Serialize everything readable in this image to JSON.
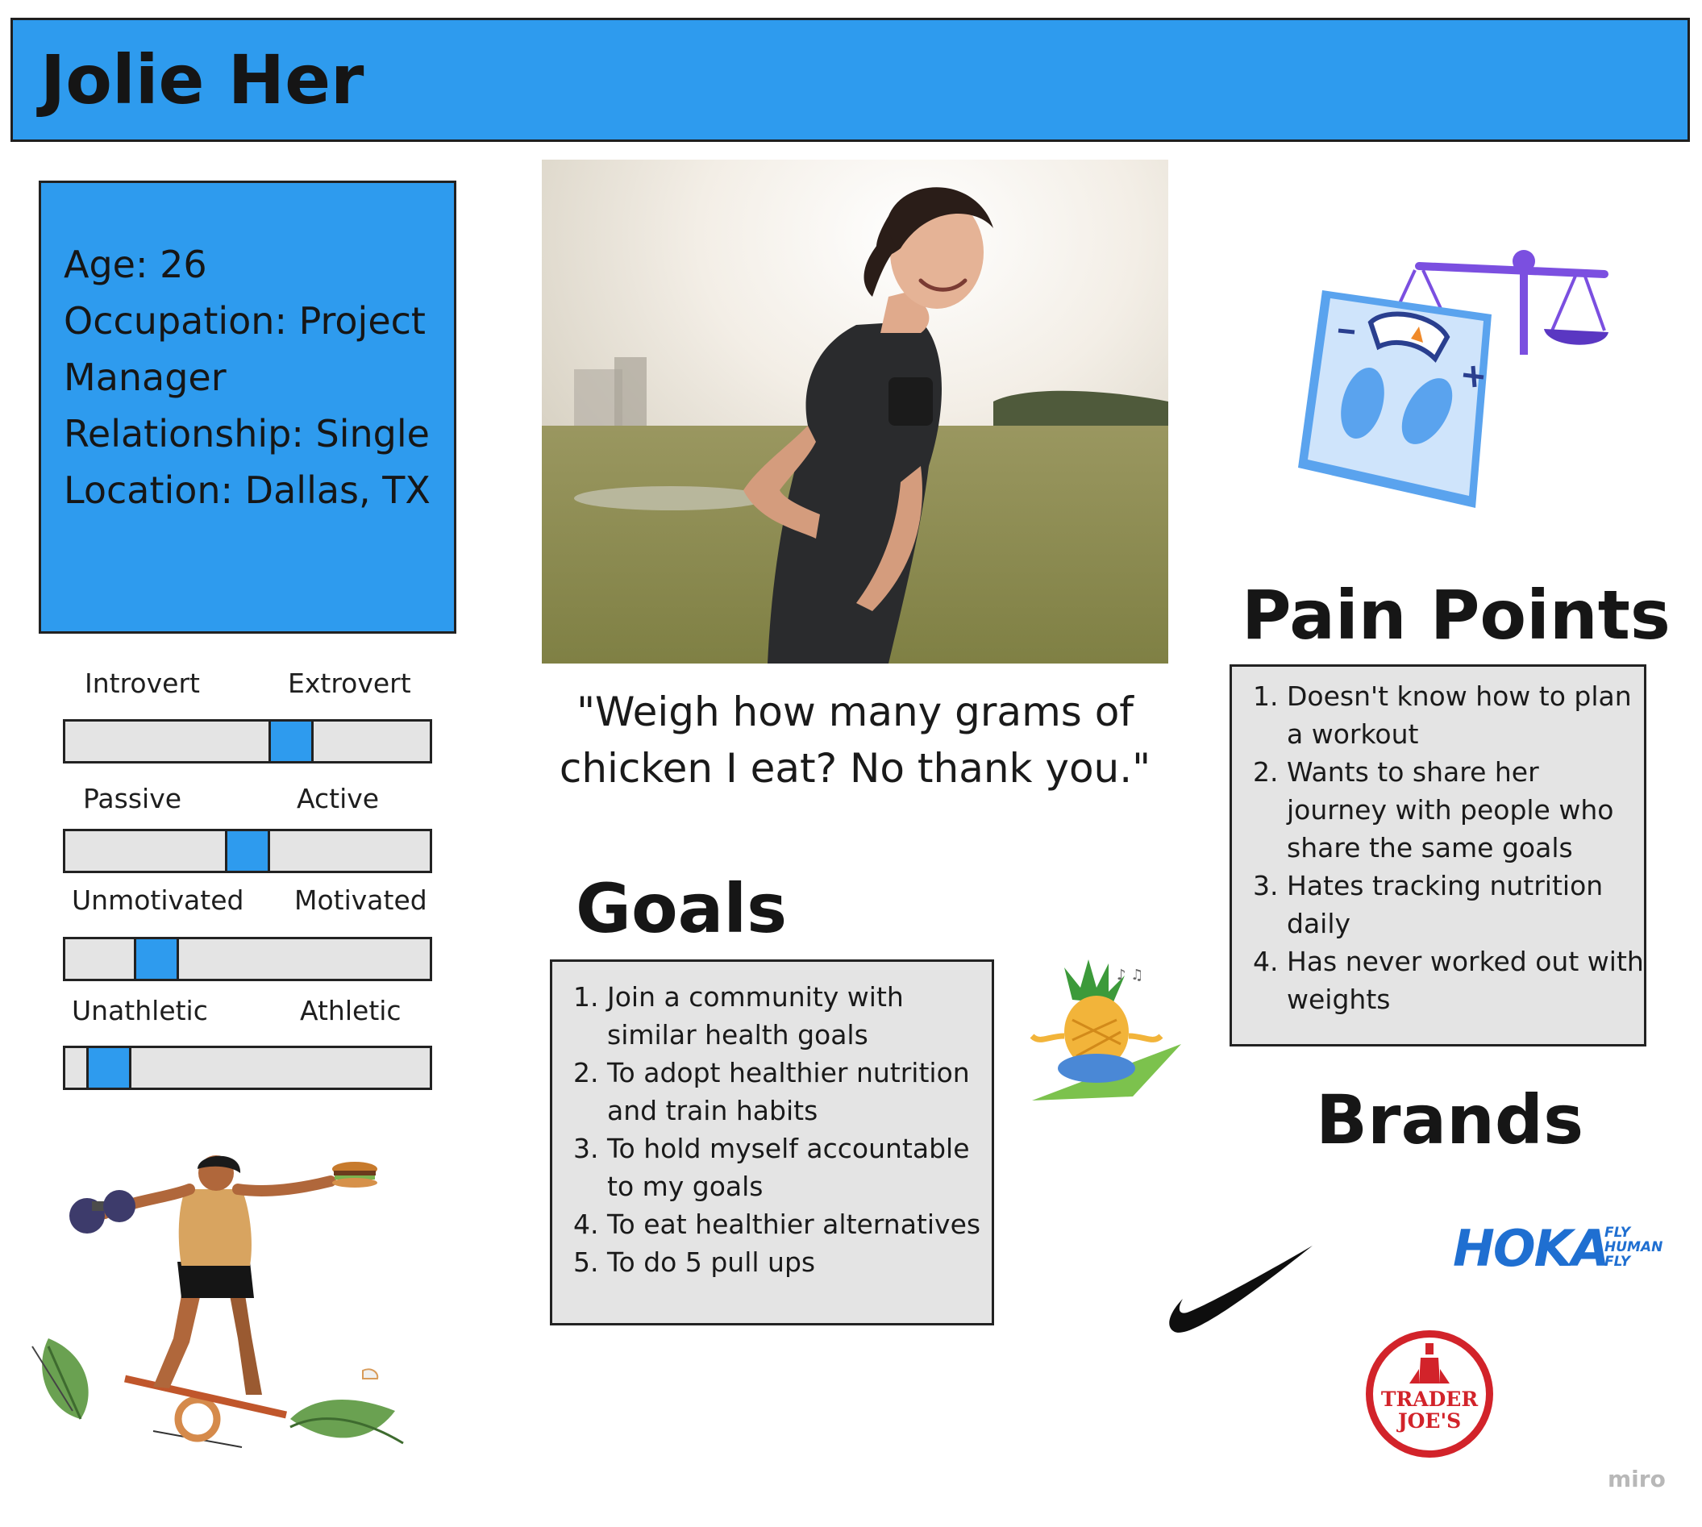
{
  "header": {
    "name": "Jolie Her"
  },
  "profile": {
    "lines": [
      "Age: 26",
      "Occupation: Project",
      "Manager",
      "Relationship: Single",
      "Location: Dallas, TX"
    ]
  },
  "traits": [
    {
      "left": "Introvert",
      "right": "Extrovert",
      "level": 0.62
    },
    {
      "left": "Passive",
      "right": "Active",
      "level": 0.5
    },
    {
      "left": "Unmotivated",
      "right": "Motivated",
      "level": 0.25
    },
    {
      "left": "Unathletic",
      "right": "Athletic",
      "level": 0.12
    }
  ],
  "quote": {
    "lines": [
      "\"Weigh how many grams of",
      "chicken I eat? No thank you.\""
    ]
  },
  "goals": {
    "title": "Goals",
    "items": [
      "Join a community with similar health goals",
      "To adopt healthier nutrition and train habits",
      "To hold myself accountable to my goals",
      "To eat healthier alternatives",
      "To do 5 pull ups"
    ]
  },
  "pain_points": {
    "title": "Pain Points",
    "items": [
      "Doesn't know how to plan a workout",
      "Wants to share her journey with people who share the same goals",
      "Hates tracking nutrition daily",
      "Has never worked out with weights"
    ]
  },
  "brands": {
    "title": "Brands",
    "hoka": {
      "name": "HOKA",
      "tagline": [
        "FLY",
        "HUMAN",
        "FLY"
      ]
    },
    "trader_joes": {
      "lines": [
        "TRADER",
        "JOE'S"
      ]
    }
  },
  "watermark": "miro",
  "colors": {
    "accent": "#2e9bee",
    "panel": "#e4e4e4",
    "hoka_blue": "#1f6fd1",
    "tj_red": "#d2232a"
  }
}
